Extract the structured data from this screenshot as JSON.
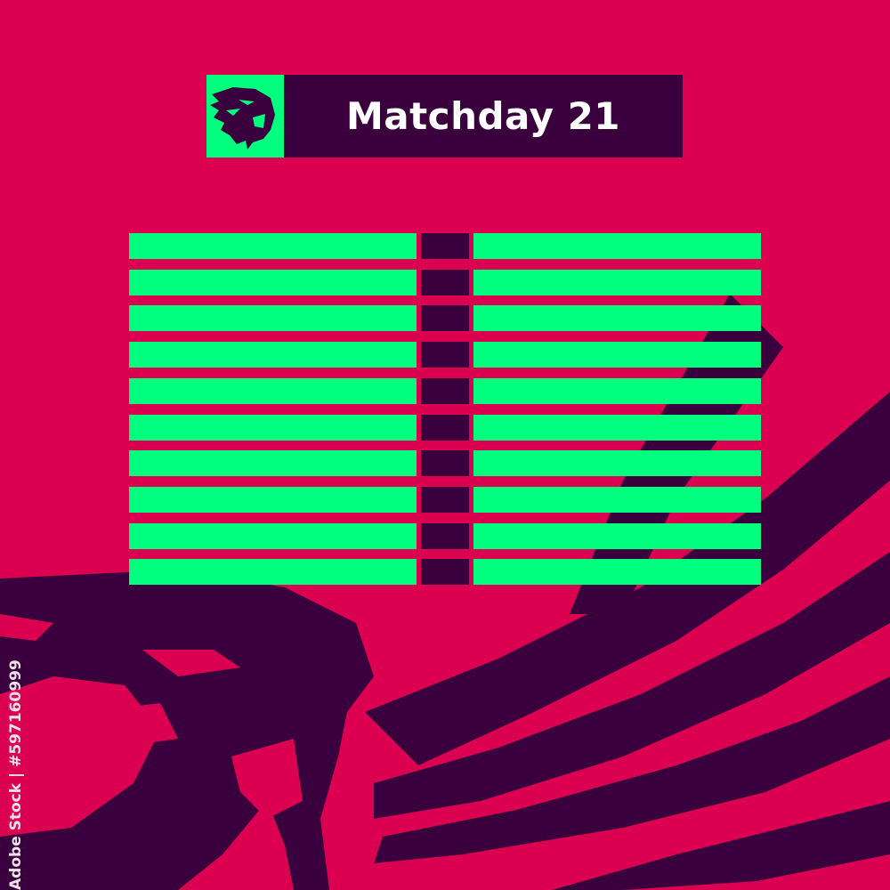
{
  "header": {
    "title": "Matchday 21",
    "logo_icon": "tiger-head-icon"
  },
  "fixtures": [
    {
      "home": "",
      "score": "",
      "away": ""
    },
    {
      "home": "",
      "score": "",
      "away": ""
    },
    {
      "home": "",
      "score": "",
      "away": ""
    },
    {
      "home": "",
      "score": "",
      "away": ""
    },
    {
      "home": "",
      "score": "",
      "away": ""
    },
    {
      "home": "",
      "score": "",
      "away": ""
    },
    {
      "home": "",
      "score": "",
      "away": ""
    },
    {
      "home": "",
      "score": "",
      "away": ""
    },
    {
      "home": "",
      "score": "",
      "away": ""
    },
    {
      "home": "",
      "score": "",
      "away": ""
    }
  ],
  "watermark": {
    "side_text": "Adobe Stock | #597160999"
  },
  "colors": {
    "background": "#dc0050",
    "dark": "#3a003d",
    "accent": "#00ff7f",
    "title_text": "#ffffff"
  }
}
